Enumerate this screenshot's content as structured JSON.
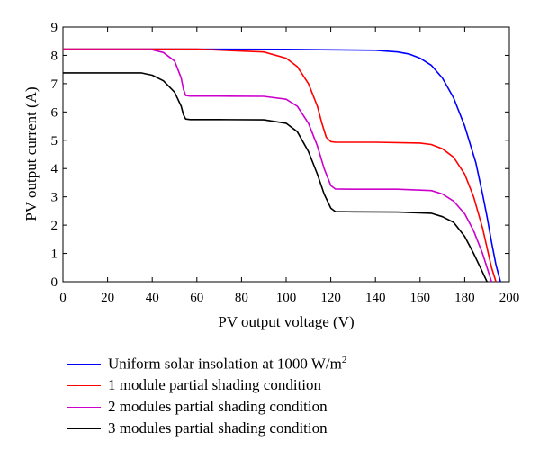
{
  "chart_data": {
    "type": "line",
    "xlabel": "PV output voltage (V)",
    "ylabel": "PV output current (A)",
    "xlim": [
      0,
      200
    ],
    "ylim": [
      0,
      9
    ],
    "xticks": [
      "0",
      "20",
      "40",
      "60",
      "80",
      "100",
      "120",
      "140",
      "160",
      "180",
      "200"
    ],
    "yticks": [
      "0",
      "1",
      "2",
      "3",
      "4",
      "5",
      "6",
      "7",
      "8",
      "9"
    ],
    "grid": false,
    "legend_position": "bottom",
    "series": [
      {
        "name": "Uniform solar insolation at 1000 W/m",
        "name_superscript": "2",
        "color": "#0000ff",
        "x": [
          0,
          40,
          100,
          140,
          150,
          155,
          160,
          165,
          170,
          175,
          180,
          185,
          188,
          190,
          192,
          194,
          196
        ],
        "y": [
          8.22,
          8.22,
          8.21,
          8.18,
          8.12,
          8.05,
          7.9,
          7.65,
          7.2,
          6.5,
          5.5,
          4.2,
          3.1,
          2.3,
          1.4,
          0.6,
          0
        ]
      },
      {
        "name": "1 module partial shading condition",
        "color": "#ff0000",
        "x": [
          0,
          60,
          90,
          100,
          105,
          110,
          114,
          116,
          118,
          120,
          122,
          140,
          160,
          165,
          170,
          175,
          180,
          184,
          188,
          190,
          192,
          194
        ],
        "y": [
          8.22,
          8.22,
          8.12,
          7.9,
          7.6,
          7.0,
          6.2,
          5.6,
          5.1,
          4.95,
          4.93,
          4.93,
          4.9,
          4.85,
          4.7,
          4.4,
          3.8,
          3.0,
          1.9,
          1.2,
          0.5,
          0
        ]
      },
      {
        "name": "2 modules partial shading condition",
        "color": "#cc00cc",
        "x": [
          0,
          40,
          45,
          50,
          53,
          54,
          55,
          57,
          70,
          90,
          100,
          105,
          110,
          114,
          117,
          120,
          122,
          130,
          150,
          165,
          170,
          175,
          180,
          184,
          188,
          190,
          192
        ],
        "y": [
          8.2,
          8.2,
          8.1,
          7.8,
          7.2,
          6.8,
          6.58,
          6.56,
          6.56,
          6.55,
          6.45,
          6.2,
          5.6,
          4.8,
          4.0,
          3.4,
          3.28,
          3.27,
          3.27,
          3.22,
          3.1,
          2.85,
          2.4,
          1.8,
          1.0,
          0.5,
          0
        ]
      },
      {
        "name": "3 modules partial shading condition",
        "color": "#000000",
        "x": [
          0,
          35,
          40,
          45,
          50,
          53,
          54,
          55,
          57,
          70,
          90,
          100,
          105,
          110,
          114,
          117,
          120,
          122,
          130,
          150,
          165,
          170,
          175,
          180,
          184,
          187,
          190
        ],
        "y": [
          7.38,
          7.38,
          7.3,
          7.1,
          6.7,
          6.2,
          5.9,
          5.75,
          5.73,
          5.73,
          5.72,
          5.6,
          5.3,
          4.6,
          3.8,
          3.1,
          2.6,
          2.48,
          2.47,
          2.46,
          2.42,
          2.3,
          2.1,
          1.6,
          1.0,
          0.5,
          0
        ]
      }
    ]
  }
}
